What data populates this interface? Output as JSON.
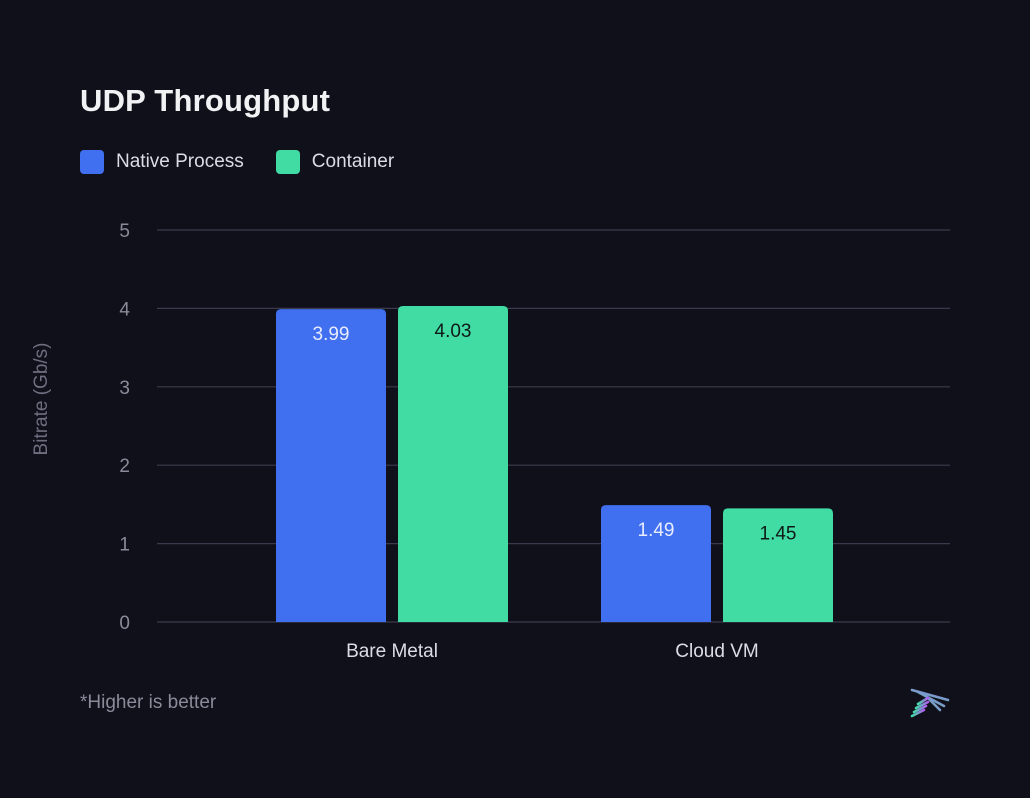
{
  "colors": {
    "native": "#4070f0",
    "container": "#40dca4",
    "grid": "#3a3a4c",
    "axis_text": "#8a8a9a",
    "category_text": "#dcdce4"
  },
  "legend": {
    "items": [
      {
        "label": "Native Process",
        "color": "#4070f0"
      },
      {
        "label": "Container",
        "color": "#40dca4"
      }
    ]
  },
  "footnote": "*Higher is better",
  "chart_data": {
    "type": "bar",
    "title": "UDP Throughput",
    "xlabel": "",
    "ylabel": "Bitrate (Gb/s)",
    "ylim": [
      0,
      5
    ],
    "yticks": [
      0,
      1,
      2,
      3,
      4,
      5
    ],
    "grid": true,
    "legend_position": "top-left",
    "categories": [
      "Bare Metal",
      "Cloud VM"
    ],
    "series": [
      {
        "name": "Native Process",
        "values": [
          3.99,
          1.49
        ],
        "labels": [
          "3.99",
          "1.49"
        ]
      },
      {
        "name": "Container",
        "values": [
          4.03,
          1.45
        ],
        "labels": [
          "4.03",
          "1.45"
        ]
      }
    ]
  }
}
